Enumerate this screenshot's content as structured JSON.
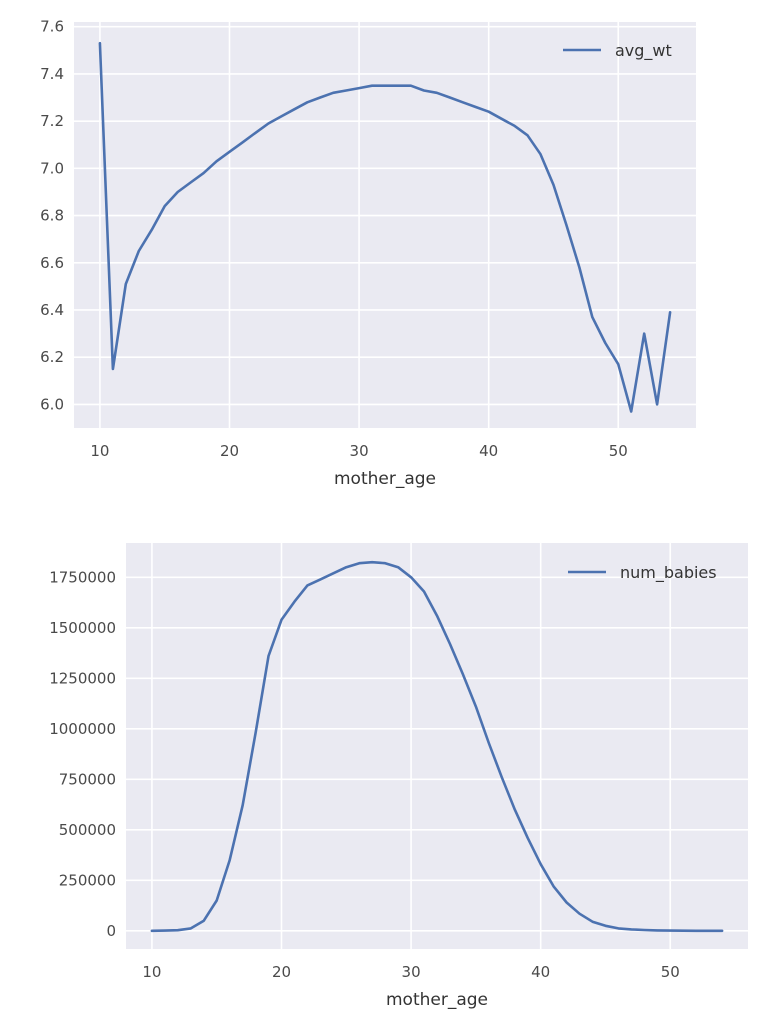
{
  "chart_data": [
    {
      "type": "line",
      "xlabel": "mother_age",
      "ylabel": "",
      "legend_position": "top-right",
      "grid": true,
      "xlim": [
        8,
        56
      ],
      "ylim": [
        5.9,
        7.62
      ],
      "x_ticks": [
        10,
        20,
        30,
        40,
        50
      ],
      "y_ticks": [
        6.0,
        6.2,
        6.4,
        6.6,
        6.8,
        7.0,
        7.2,
        7.4,
        7.6
      ],
      "x_tick_labels": [
        "10",
        "20",
        "30",
        "40",
        "50"
      ],
      "y_tick_labels": [
        "6.0",
        "6.2",
        "6.4",
        "6.6",
        "6.8",
        "7.0",
        "7.2",
        "7.4",
        "7.6"
      ],
      "series": [
        {
          "name": "avg_wt",
          "color": "#4c72b0",
          "x": [
            10,
            11,
            12,
            13,
            14,
            15,
            16,
            17,
            18,
            19,
            20,
            21,
            22,
            23,
            24,
            25,
            26,
            27,
            28,
            29,
            30,
            31,
            32,
            33,
            34,
            35,
            36,
            37,
            38,
            39,
            40,
            41,
            42,
            43,
            44,
            45,
            46,
            47,
            48,
            49,
            50,
            51,
            52,
            53,
            54
          ],
          "values": [
            7.53,
            6.15,
            6.51,
            6.65,
            6.74,
            6.84,
            6.9,
            6.94,
            6.98,
            7.03,
            7.07,
            7.11,
            7.15,
            7.19,
            7.22,
            7.25,
            7.28,
            7.3,
            7.32,
            7.33,
            7.34,
            7.35,
            7.35,
            7.35,
            7.35,
            7.33,
            7.32,
            7.3,
            7.28,
            7.26,
            7.24,
            7.21,
            7.18,
            7.14,
            7.06,
            6.93,
            6.76,
            6.58,
            6.37,
            6.26,
            6.17,
            5.97,
            6.3,
            6.0,
            6.39
          ]
        }
      ]
    },
    {
      "type": "line",
      "xlabel": "mother_age",
      "ylabel": "",
      "legend_position": "top-right",
      "grid": true,
      "xlim": [
        8,
        56
      ],
      "ylim": [
        -90000,
        1920000
      ],
      "x_ticks": [
        10,
        20,
        30,
        40,
        50
      ],
      "y_ticks": [
        0,
        250000,
        500000,
        750000,
        1000000,
        1250000,
        1500000,
        1750000
      ],
      "x_tick_labels": [
        "10",
        "20",
        "30",
        "40",
        "50"
      ],
      "y_tick_labels": [
        "0",
        "250000",
        "500000",
        "750000",
        "1000000",
        "1250000",
        "1500000",
        "1750000"
      ],
      "series": [
        {
          "name": "num_babies",
          "color": "#4c72b0",
          "x": [
            10,
            11,
            12,
            13,
            14,
            15,
            16,
            17,
            18,
            19,
            20,
            21,
            22,
            23,
            24,
            25,
            26,
            27,
            28,
            29,
            30,
            31,
            32,
            33,
            34,
            35,
            36,
            37,
            38,
            39,
            40,
            41,
            42,
            43,
            44,
            45,
            46,
            47,
            48,
            49,
            50,
            51,
            52,
            53,
            54
          ],
          "values": [
            0,
            1000,
            3000,
            12000,
            50000,
            150000,
            350000,
            620000,
            980000,
            1360000,
            1540000,
            1630000,
            1710000,
            1740000,
            1770000,
            1800000,
            1820000,
            1825000,
            1820000,
            1800000,
            1750000,
            1680000,
            1560000,
            1420000,
            1270000,
            1110000,
            930000,
            760000,
            600000,
            460000,
            330000,
            220000,
            140000,
            85000,
            45000,
            25000,
            12000,
            7000,
            4000,
            2000,
            1000,
            500,
            200,
            100,
            50
          ]
        }
      ]
    }
  ]
}
